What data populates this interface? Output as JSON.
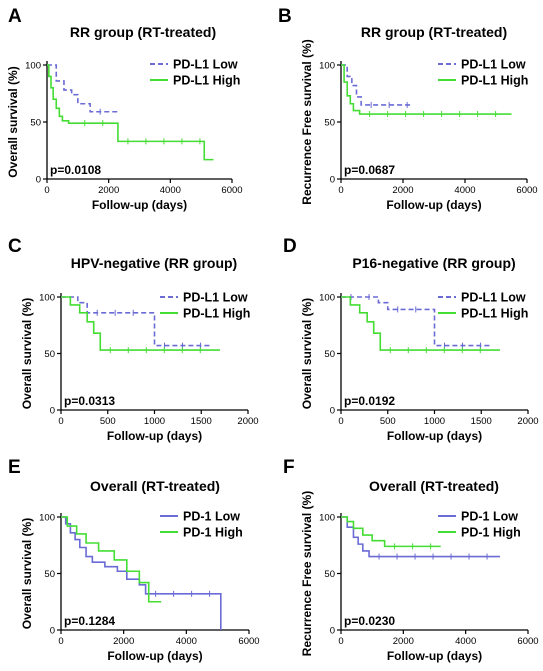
{
  "chart_data": [
    {
      "panel": "A",
      "type": "line",
      "step": true,
      "title": "RR group (RT-treated)",
      "xlabel": "Follow-up (days)",
      "ylabel": "Overall survival (%)",
      "xlim": [
        0,
        6000
      ],
      "ylim": [
        0,
        100
      ],
      "xticks": [
        0,
        2000,
        4000,
        6000
      ],
      "yticks": [
        0,
        50,
        100
      ],
      "annotation": "p=0.0108",
      "series": [
        {
          "name": "PD-L1 Low",
          "color": "#6b6bd6",
          "dash": true,
          "x": [
            0,
            300,
            550,
            800,
            1000,
            1150,
            1400,
            2300
          ],
          "y": [
            100,
            86,
            78,
            74,
            66,
            66,
            59,
            59
          ]
        },
        {
          "name": "PD-L1 High",
          "color": "#44dd33",
          "dash": false,
          "x": [
            0,
            60,
            130,
            200,
            300,
            400,
            500,
            700,
            900,
            2300,
            5100,
            5400
          ],
          "y": [
            100,
            90,
            80,
            70,
            62,
            55,
            51,
            49,
            49,
            33,
            17,
            17
          ]
        }
      ]
    },
    {
      "panel": "B",
      "type": "line",
      "step": true,
      "title": "RR group (RT-treated)",
      "xlabel": "Follow-up (days)",
      "ylabel": "Recurrence Free survival (%)",
      "xlim": [
        0,
        6000
      ],
      "ylim": [
        0,
        100
      ],
      "xticks": [
        0,
        2000,
        4000,
        6000
      ],
      "yticks": [
        0,
        50,
        100
      ],
      "annotation": "p=0.0687",
      "series": [
        {
          "name": "PD-L1 Low",
          "color": "#6b6bd6",
          "dash": true,
          "x": [
            0,
            200,
            350,
            500,
            650,
            2300
          ],
          "y": [
            100,
            90,
            82,
            72,
            65,
            65
          ]
        },
        {
          "name": "PD-L1 High",
          "color": "#44dd33",
          "dash": false,
          "x": [
            0,
            100,
            200,
            300,
            400,
            600,
            5500
          ],
          "y": [
            100,
            85,
            73,
            66,
            60,
            57,
            57
          ]
        }
      ]
    },
    {
      "panel": "C",
      "type": "line",
      "step": true,
      "title": "HPV-negative (RR group)",
      "xlabel": "Follow-up (days)",
      "ylabel": "Overall survival (%)",
      "xlim": [
        0,
        2000
      ],
      "ylim": [
        0,
        100
      ],
      "xticks": [
        0,
        500,
        1000,
        1500,
        2000
      ],
      "yticks": [
        0,
        50,
        100
      ],
      "annotation": "p=0.0313",
      "series": [
        {
          "name": "PD-L1 Low",
          "color": "#6b6bd6",
          "dash": true,
          "x": [
            0,
            180,
            280,
            1000,
            1600
          ],
          "y": [
            100,
            95,
            86,
            57,
            57
          ]
        },
        {
          "name": "PD-L1 High",
          "color": "#44dd33",
          "dash": false,
          "x": [
            0,
            100,
            200,
            280,
            350,
            420,
            1700
          ],
          "y": [
            100,
            93,
            86,
            78,
            68,
            53,
            53
          ]
        }
      ]
    },
    {
      "panel": "D",
      "type": "line",
      "step": true,
      "title": "P16-negative (RR group)",
      "xlabel": "Follow-up (days)",
      "ylabel": "Overall survival (%)",
      "xlim": [
        0,
        2000
      ],
      "ylim": [
        0,
        100
      ],
      "xticks": [
        0,
        500,
        1000,
        1500,
        2000
      ],
      "yticks": [
        0,
        50,
        100
      ],
      "annotation": "p=0.0192",
      "series": [
        {
          "name": "PD-L1 Low",
          "color": "#6b6bd6",
          "dash": true,
          "x": [
            0,
            400,
            500,
            1000,
            1600
          ],
          "y": [
            100,
            95,
            89,
            57,
            57
          ]
        },
        {
          "name": "PD-L1 High",
          "color": "#44dd33",
          "dash": false,
          "x": [
            0,
            100,
            200,
            280,
            350,
            420,
            1700
          ],
          "y": [
            100,
            93,
            86,
            78,
            68,
            53,
            53
          ]
        }
      ]
    },
    {
      "panel": "E",
      "type": "line",
      "step": true,
      "title": "Overall (RT-treated)",
      "xlabel": "Follow-up (days)",
      "ylabel": "Overall survival (%)",
      "xlim": [
        0,
        6000
      ],
      "ylim": [
        0,
        100
      ],
      "xticks": [
        0,
        2000,
        4000,
        6000
      ],
      "yticks": [
        0,
        50,
        100
      ],
      "annotation": "p=0.1284",
      "series": [
        {
          "name": "PD-1 Low",
          "color": "#6b6bd6",
          "dash": false,
          "x": [
            0,
            150,
            300,
            450,
            600,
            800,
            1000,
            1400,
            1800,
            2100,
            2500,
            2700,
            5100
          ],
          "y": [
            100,
            94,
            86,
            80,
            73,
            65,
            60,
            56,
            52,
            45,
            40,
            32,
            0
          ]
        },
        {
          "name": "PD-1 High",
          "color": "#44dd33",
          "dash": false,
          "x": [
            0,
            200,
            500,
            800,
            1200,
            1700,
            2100,
            2500,
            2800,
            3200
          ],
          "y": [
            100,
            92,
            85,
            77,
            70,
            62,
            52,
            42,
            25,
            25
          ]
        }
      ]
    },
    {
      "panel": "F",
      "type": "line",
      "step": true,
      "title": "Overall (RT-treated)",
      "xlabel": "Follow-up (days)",
      "ylabel": "Recurrence Free survival (%)",
      "xlim": [
        0,
        6000
      ],
      "ylim": [
        0,
        100
      ],
      "xticks": [
        0,
        2000,
        4000,
        6000
      ],
      "yticks": [
        0,
        50,
        100
      ],
      "annotation": "p=0.0230",
      "series": [
        {
          "name": "PD-1 Low",
          "color": "#6b6bd6",
          "dash": false,
          "x": [
            0,
            200,
            400,
            550,
            700,
            900,
            5100
          ],
          "y": [
            100,
            91,
            82,
            76,
            70,
            65,
            65
          ]
        },
        {
          "name": "PD-1 High",
          "color": "#44dd33",
          "dash": false,
          "x": [
            0,
            200,
            400,
            700,
            1000,
            1400,
            3200
          ],
          "y": [
            100,
            96,
            90,
            84,
            79,
            74,
            74
          ]
        }
      ]
    }
  ]
}
